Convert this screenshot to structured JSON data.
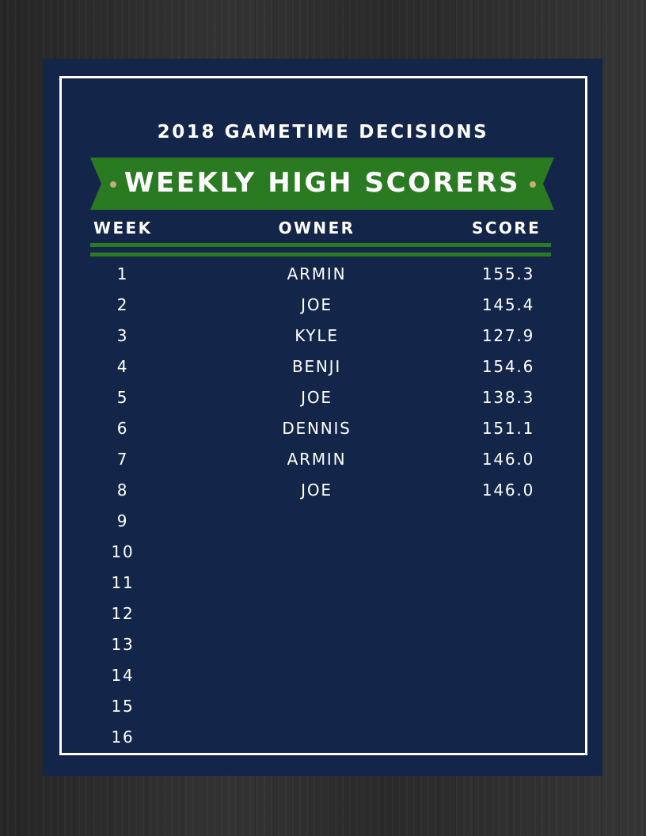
{
  "subtitle": "2018 GAMETIME DECISIONS",
  "banner_title": "WEEKLY HIGH SCORERS",
  "columns": {
    "week": "WEEK",
    "owner": "OWNER",
    "score": "SCORE"
  },
  "rows": [
    {
      "week": "1",
      "owner": "ARMIN",
      "score": "155.3"
    },
    {
      "week": "2",
      "owner": "JOE",
      "score": "145.4"
    },
    {
      "week": "3",
      "owner": "KYLE",
      "score": "127.9"
    },
    {
      "week": "4",
      "owner": "BENJI",
      "score": "154.6"
    },
    {
      "week": "5",
      "owner": "JOE",
      "score": "138.3"
    },
    {
      "week": "6",
      "owner": "DENNIS",
      "score": "151.1"
    },
    {
      "week": "7",
      "owner": "ARMIN",
      "score": "146.0"
    },
    {
      "week": "8",
      "owner": "JOE",
      "score": "146.0"
    },
    {
      "week": "9",
      "owner": "",
      "score": ""
    },
    {
      "week": "10",
      "owner": "",
      "score": ""
    },
    {
      "week": "11",
      "owner": "",
      "score": ""
    },
    {
      "week": "12",
      "owner": "",
      "score": ""
    },
    {
      "week": "13",
      "owner": "",
      "score": ""
    },
    {
      "week": "14",
      "owner": "",
      "score": ""
    },
    {
      "week": "15",
      "owner": "",
      "score": ""
    },
    {
      "week": "16",
      "owner": "",
      "score": ""
    }
  ],
  "colors": {
    "background": "#2e2e2e",
    "card": "#13264a",
    "banner_green": "#2a7a22",
    "accent_dot": "#c2ad7c",
    "text": "#ffffff"
  }
}
